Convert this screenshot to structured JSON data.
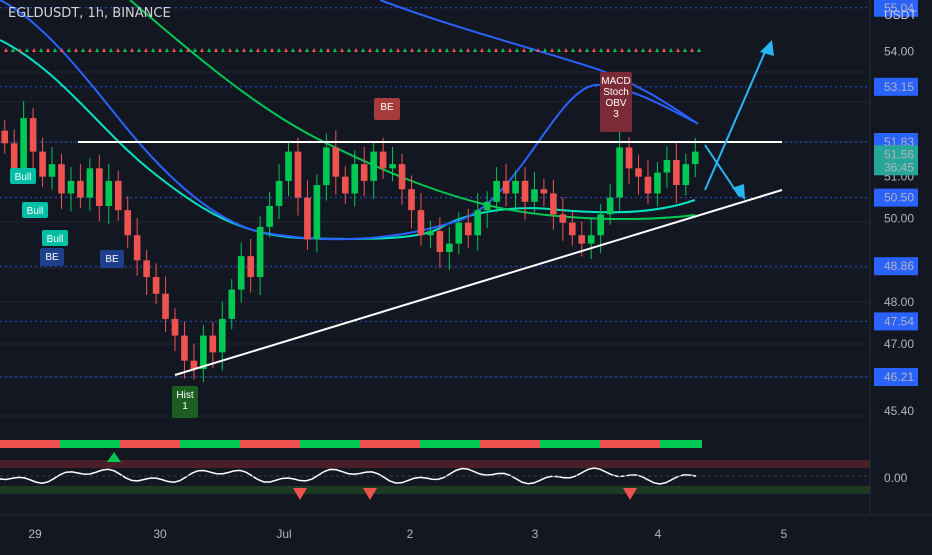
{
  "header": {
    "symbol_line": "EGLDUSDT, 1h, BINANCE",
    "currency": "USDT"
  },
  "colors": {
    "bg": "#131722",
    "bull": "#26a69a",
    "bear": "#ef5350",
    "ma_blue": "#2962ff",
    "ma_green": "#00c853",
    "ma_teal": "#00e5c0",
    "trend_white": "#ffffff",
    "arrow_blue": "#29b6f6"
  },
  "y_axis": {
    "ticks": [
      "55.04",
      "54.00",
      "53.15",
      "51.83",
      "51.56",
      "36:45",
      "51.00",
      "50.50",
      "50.00",
      "48.86",
      "48.00",
      "47.54",
      "47.00",
      "46.21",
      "45.40",
      "0.00"
    ]
  },
  "x_axis": {
    "ticks": [
      "29",
      "30",
      "Jul",
      "2",
      "3",
      "4",
      "5"
    ]
  },
  "price_labels": {
    "p1": "55.04",
    "p2": "53.15",
    "p3": "51.83",
    "p4": "51.56",
    "p4b": "36:45",
    "p5": "50.50",
    "p6": "48.86",
    "p7": "47.54",
    "p8": "46.21"
  },
  "annotations": {
    "bull": "Bull",
    "be": "BE",
    "hist": "Hist",
    "hist_n": "1",
    "macd": "MACD",
    "stoch": "Stoch",
    "obv": "OBV",
    "macd_n": "3"
  },
  "chart_data": {
    "type": "candlestick",
    "title": "EGLDUSDT, 1h, BINANCE",
    "ylabel": "USDT",
    "ylim": [
      45.0,
      55.6
    ],
    "x_ticks": [
      "29",
      "30",
      "Jul",
      "2",
      "3",
      "4",
      "5"
    ],
    "key_levels": [
      55.04,
      53.15,
      51.83,
      51.56,
      50.5,
      48.86,
      47.54,
      46.21
    ],
    "resistance": 51.83,
    "support_line": {
      "from": [
        "30",
        46.2
      ],
      "to": [
        "4",
        50.5
      ]
    },
    "price_path": [
      51.8,
      51.2,
      52.4,
      51.6,
      51.0,
      51.3,
      50.6,
      50.9,
      50.5,
      51.2,
      50.3,
      50.9,
      50.2,
      49.6,
      49.0,
      48.6,
      48.2,
      47.6,
      47.2,
      46.6,
      46.4,
      47.2,
      46.8,
      47.6,
      48.3,
      49.1,
      48.6,
      49.8,
      50.3,
      50.9,
      51.6,
      50.5,
      49.5,
      50.8,
      51.7,
      51.0,
      50.6,
      51.3,
      50.9,
      51.6,
      51.2,
      51.3,
      50.7,
      50.2,
      49.6,
      49.7,
      49.2,
      49.4,
      49.9,
      49.6,
      50.2,
      50.4,
      50.9,
      50.6,
      50.9,
      50.4,
      50.7,
      50.6,
      50.1,
      49.9,
      49.6,
      49.4,
      49.6,
      50.1,
      50.5,
      51.7,
      51.2,
      51.0,
      50.6,
      51.1,
      51.4,
      50.8,
      51.3,
      51.6
    ]
  }
}
